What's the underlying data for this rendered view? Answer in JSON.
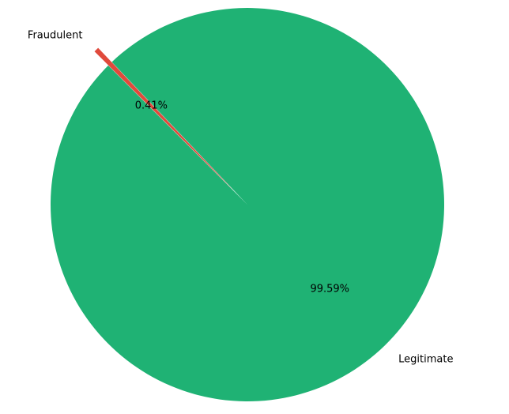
{
  "chart_data": {
    "type": "pie",
    "slices": [
      {
        "label": "Legitimate",
        "value": 99.59,
        "pct_label": "99.59%",
        "color": "#1fb274"
      },
      {
        "label": "Fraudulent",
        "value": 0.41,
        "pct_label": "0.41%",
        "color": "#e04a3c"
      }
    ],
    "start_angle_deg": 135,
    "exploded": [
      "Fraudulent"
    ]
  }
}
